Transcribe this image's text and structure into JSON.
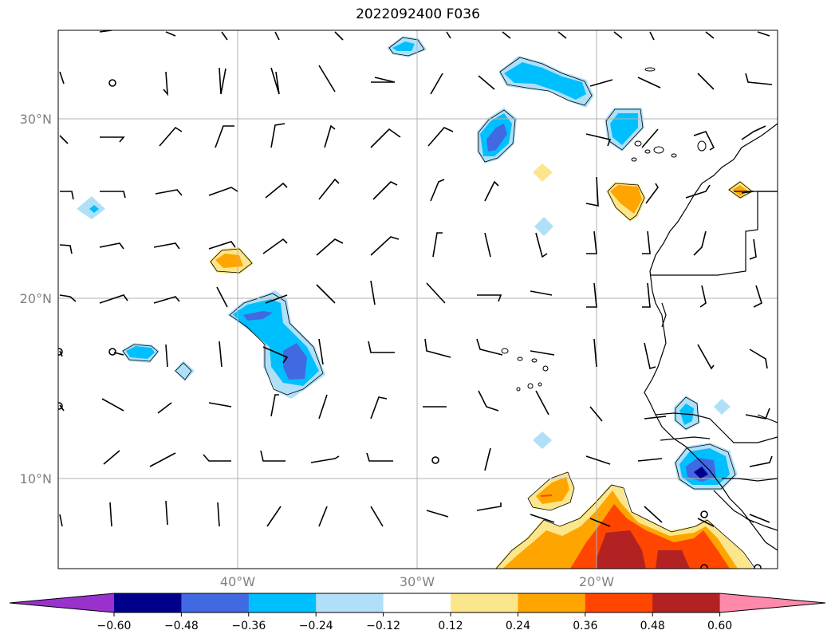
{
  "title": "2022092400 F036",
  "map": {
    "lon_range": [
      -50,
      -10
    ],
    "lat_range": [
      5,
      35
    ],
    "gridlines": true,
    "lat_labels": [
      "30°N",
      "20°N",
      "10°N"
    ],
    "lat_values": [
      30,
      20,
      10
    ],
    "lon_labels": [
      "40°W",
      "30°W",
      "20°W"
    ],
    "lon_values": [
      -40,
      -30,
      -20
    ]
  },
  "colorbar": {
    "levels": [
      "−0.60",
      "−0.48",
      "−0.36",
      "−0.24",
      "−0.12",
      "0.12",
      "0.24",
      "0.36",
      "0.48",
      "0.60"
    ],
    "colors": [
      "#9932cc",
      "#00008b",
      "#4169e1",
      "#00bfff",
      "#b0e0f8",
      "#ffffff",
      "#fbe68b",
      "#ffa500",
      "#ff4500",
      "#b22222",
      "#ff89ab"
    ],
    "extend": "both"
  },
  "features": {
    "shading_colors": {
      "light_blue": "#b0e0f8",
      "blue": "#00bfff",
      "royal_blue": "#4169e1",
      "navy": "#00008b",
      "light_yellow": "#fbe68b",
      "orange": "#ffa500",
      "red_orange": "#ff4500",
      "firebrick": "#b22222"
    }
  }
}
